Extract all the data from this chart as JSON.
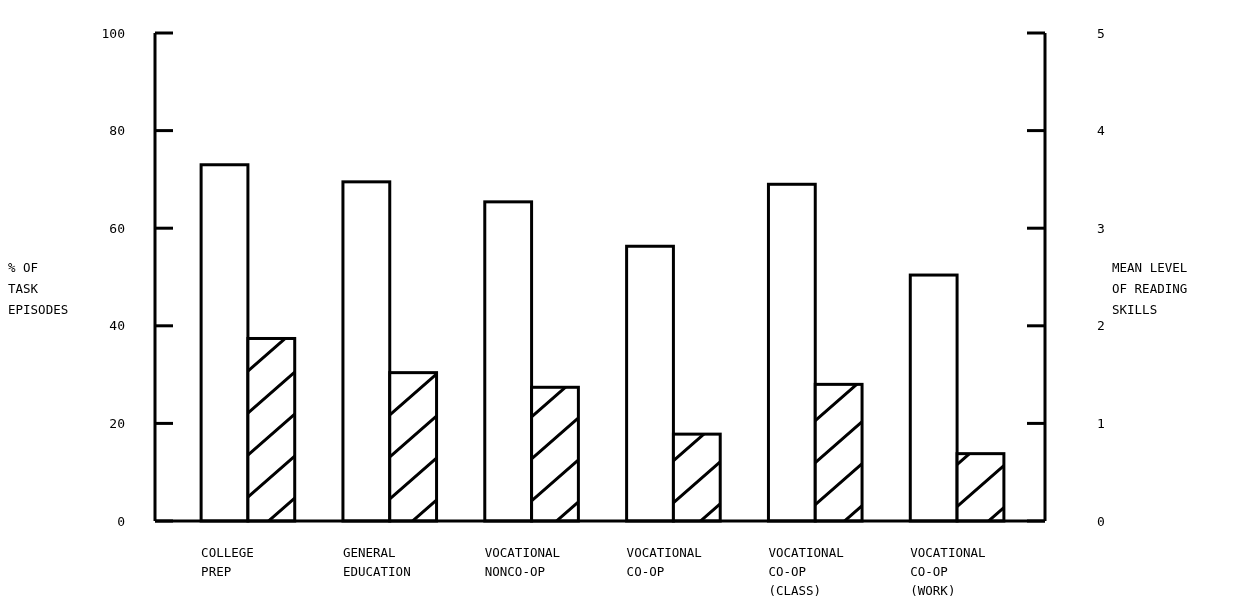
{
  "chart_data": {
    "type": "bar",
    "ylabel": "% OF\nTASK\nEPISODES",
    "y2label": "MEAN LEVEL\nOF READING\nSKILLS",
    "categories": [
      "COLLEGE\nPREP",
      "GENERAL\nEDUCATION",
      "VOCATIONAL\nNONCO-OP",
      "VOCATIONAL\nCO-OP",
      "VOCATIONAL\nCO-OP\n(CLASS)",
      "VOCATIONAL\nCO-OP\n(WORK)"
    ],
    "series": [
      {
        "color": "#ffffff",
        "values": [
          73,
          69.5,
          65.4,
          56.3,
          69,
          50.4
        ]
      },
      {
        "color": "#000000",
        "axis": "y2",
        "values": [
          1.87,
          1.52,
          1.37,
          0.89,
          1.4,
          0.69
        ]
      }
    ],
    "ylim": [
      0,
      100
    ],
    "yticks": [
      0,
      20,
      40,
      60,
      80,
      100
    ],
    "y2lim": [
      0,
      5
    ],
    "y2ticks": [
      0,
      1,
      2,
      3,
      4,
      5
    ],
    "grid": false
  }
}
